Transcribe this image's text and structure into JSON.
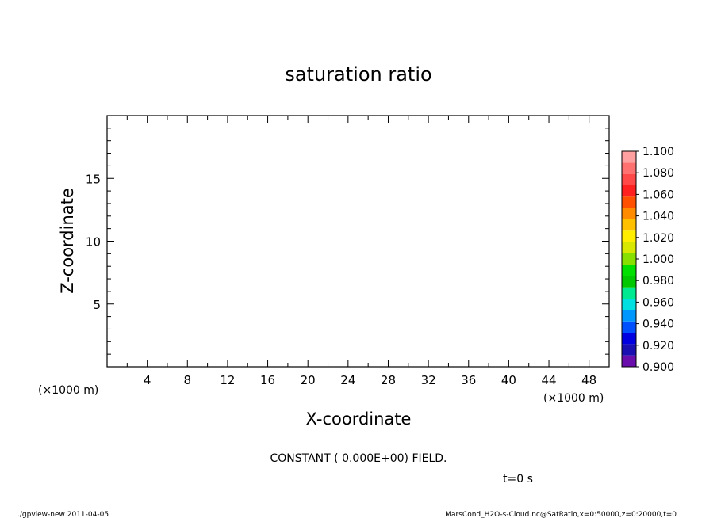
{
  "chart_data": {
    "type": "heatmap",
    "title": "saturation ratio",
    "xlabel": "X-coordinate",
    "ylabel": "Z-coordinate",
    "x_unit_label": "(×1000 m)",
    "y_unit_label": "(×1000 m)",
    "xlim": [
      0,
      50
    ],
    "ylim": [
      0,
      20
    ],
    "x_ticks": [
      4,
      8,
      12,
      16,
      20,
      24,
      28,
      32,
      36,
      40,
      44,
      48
    ],
    "y_ticks": [
      5,
      10,
      15
    ],
    "x_minor_step": 2,
    "y_minor_step": 1,
    "field_message": "CONSTANT ( 0.000E+00) FIELD.",
    "time_label": "t=0 s",
    "colorbar": {
      "levels": [
        "0.900",
        "0.920",
        "0.940",
        "0.960",
        "0.980",
        "1.000",
        "1.020",
        "1.040",
        "1.060",
        "1.080",
        "1.100"
      ],
      "colors": [
        "#6a0dad",
        "#1a0fb0",
        "#0000e0",
        "#0050ff",
        "#0098ff",
        "#00e0e0",
        "#00e890",
        "#00c800",
        "#00e000",
        "#88e000",
        "#d8e800",
        "#ffee00",
        "#ffc000",
        "#ff8c00",
        "#ff5000",
        "#ff2020",
        "#ff4848",
        "#ff7070",
        "#ffa0a0"
      ]
    }
  },
  "footer": {
    "left": "./gpview-new   2011-04-05",
    "right": "MarsCond_H2O-s-Cloud.nc@SatRatio,x=0:50000,z=0:20000,t=0"
  }
}
